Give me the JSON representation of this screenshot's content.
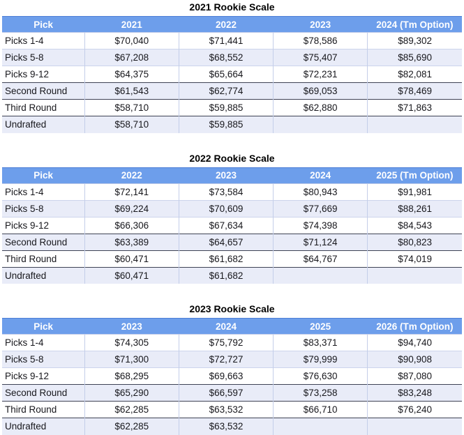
{
  "colors": {
    "header_bg": "#6d9eeb",
    "header_text": "#ffffff",
    "alt_row_bg": "#e9ecf8",
    "light_divider": "#ccd4ec",
    "dark_divider": "#3e4254"
  },
  "tables": [
    {
      "title": "2021 Rookie Scale",
      "headers": [
        "Pick",
        "2021",
        "2022",
        "2023",
        "2024 (Tm Option)"
      ],
      "rows": [
        {
          "label": "Picks 1-4",
          "values": [
            "$70,040",
            "$71,441",
            "$78,586",
            "$89,302"
          ]
        },
        {
          "label": "Picks 5-8",
          "values": [
            "$67,208",
            "$68,552",
            "$75,407",
            "$85,690"
          ]
        },
        {
          "label": "Picks 9-12",
          "values": [
            "$64,375",
            "$65,664",
            "$72,231",
            "$82,081"
          ]
        },
        {
          "label": "Second Round",
          "values": [
            "$61,543",
            "$62,774",
            "$69,053",
            "$78,469"
          ]
        },
        {
          "label": "Third Round",
          "values": [
            "$58,710",
            "$59,885",
            "$62,880",
            "$71,863"
          ]
        },
        {
          "label": "Undrafted",
          "values": [
            "$58,710",
            "$59,885",
            "",
            ""
          ]
        }
      ]
    },
    {
      "title": "2022 Rookie Scale",
      "headers": [
        "Pick",
        "2022",
        "2023",
        "2024",
        "2025 (Tm Option)"
      ],
      "rows": [
        {
          "label": "Picks 1-4",
          "values": [
            "$72,141",
            "$73,584",
            "$80,943",
            "$91,981"
          ]
        },
        {
          "label": "Picks 5-8",
          "values": [
            "$69,224",
            "$70,609",
            "$77,669",
            "$88,261"
          ]
        },
        {
          "label": "Picks 9-12",
          "values": [
            "$66,306",
            "$67,634",
            "$74,398",
            "$84,543"
          ]
        },
        {
          "label": "Second Round",
          "values": [
            "$63,389",
            "$64,657",
            "$71,124",
            "$80,823"
          ]
        },
        {
          "label": "Third Round",
          "values": [
            "$60,471",
            "$61,682",
            "$64,767",
            "$74,019"
          ]
        },
        {
          "label": "Undrafted",
          "values": [
            "$60,471",
            "$61,682",
            "",
            ""
          ]
        }
      ]
    },
    {
      "title": "2023 Rookie Scale",
      "headers": [
        "Pick",
        "2023",
        "2024",
        "2025",
        "2026 (Tm Option)"
      ],
      "rows": [
        {
          "label": "Picks 1-4",
          "values": [
            "$74,305",
            "$75,792",
            "$83,371",
            "$94,740"
          ]
        },
        {
          "label": "Picks 5-8",
          "values": [
            "$71,300",
            "$72,727",
            "$79,999",
            "$90,908"
          ]
        },
        {
          "label": "Picks 9-12",
          "values": [
            "$68,295",
            "$69,663",
            "$76,630",
            "$87,080"
          ]
        },
        {
          "label": "Second Round",
          "values": [
            "$65,290",
            "$66,597",
            "$73,258",
            "$83,248"
          ]
        },
        {
          "label": "Third Round",
          "values": [
            "$62,285",
            "$63,532",
            "$66,710",
            "$76,240"
          ]
        },
        {
          "label": "Undrafted",
          "values": [
            "$62,285",
            "$63,532",
            "",
            ""
          ]
        }
      ]
    }
  ]
}
